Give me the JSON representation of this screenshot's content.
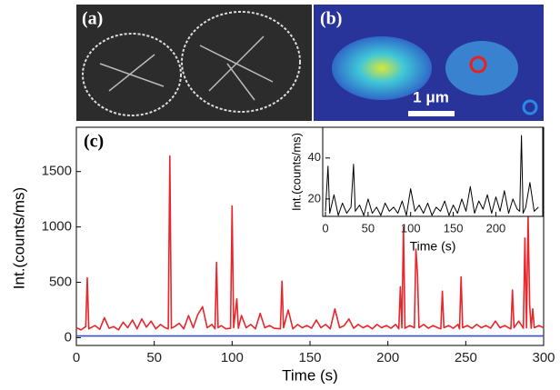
{
  "panels": {
    "a": "(a)",
    "b": "(b)",
    "scale_bar": "1 μm"
  },
  "chart_data": {
    "type": "line",
    "panel_label": "(c)",
    "xlabel": "Time (s)",
    "ylabel": "Int.(counts/ms)",
    "xlim": [
      0,
      300
    ],
    "xticks": [
      0,
      50,
      100,
      150,
      200,
      250,
      300
    ],
    "ylim": [
      -70,
      1900
    ],
    "yticks": [
      0,
      500,
      1000,
      1500
    ],
    "series": [
      {
        "color": "#e8262b",
        "x": [
          0,
          3,
          6,
          7,
          8,
          12,
          15,
          18,
          21,
          24,
          27,
          30,
          33,
          36,
          39,
          42,
          45,
          48,
          51,
          54,
          57,
          59,
          60,
          61,
          63,
          66,
          69,
          72,
          75,
          78,
          81,
          84,
          87,
          89,
          90,
          91,
          93,
          96,
          99,
          100,
          101,
          103,
          104,
          106,
          109,
          112,
          115,
          118,
          121,
          124,
          127,
          131,
          132,
          133,
          136,
          139,
          142,
          145,
          148,
          151,
          154,
          157,
          160,
          163,
          166,
          169,
          172,
          175,
          178,
          181,
          184,
          187,
          190,
          193,
          196,
          199,
          202,
          205,
          207,
          208,
          209,
          210,
          211,
          214,
          217,
          218,
          219,
          220,
          223,
          226,
          229,
          232,
          234,
          235,
          236,
          239,
          242,
          245,
          246,
          247,
          248,
          251,
          254,
          257,
          260,
          263,
          266,
          269,
          272,
          275,
          278,
          279,
          280,
          281,
          284,
          287,
          288,
          289,
          290,
          291,
          292,
          293,
          294,
          297,
          300
        ],
        "values": [
          90,
          70,
          100,
          540,
          80,
          110,
          75,
          180,
          85,
          100,
          70,
          140,
          90,
          160,
          80,
          170,
          95,
          150,
          80,
          120,
          90,
          80,
          1640,
          85,
          100,
          130,
          80,
          200,
          90,
          210,
          280,
          90,
          120,
          80,
          680,
          90,
          110,
          80,
          85,
          1190,
          90,
          350,
          85,
          200,
          90,
          120,
          80,
          220,
          90,
          110,
          85,
          80,
          510,
          90,
          250,
          80,
          120,
          90,
          110,
          85,
          160,
          90,
          120,
          80,
          260,
          90,
          110,
          170,
          85,
          120,
          90,
          110,
          80,
          120,
          90,
          110,
          85,
          120,
          80,
          460,
          90,
          1000,
          85,
          110,
          90,
          800,
          580,
          90,
          120,
          85,
          110,
          90,
          80,
          420,
          90,
          110,
          85,
          120,
          80,
          550,
          90,
          110,
          85,
          120,
          90,
          110,
          85,
          150,
          90,
          110,
          85,
          80,
          430,
          90,
          150,
          85,
          900,
          90,
          1100,
          300,
          85,
          260,
          90,
          110,
          90
        ]
      },
      {
        "color": "#3b4fc4",
        "x": [
          0,
          300
        ],
        "values": [
          15,
          15
        ]
      }
    ],
    "inset": {
      "type": "line",
      "xlabel": "Time (s)",
      "ylabel": "Int.(counts/ms)",
      "xlim": [
        0,
        255
      ],
      "xticks": [
        0,
        50,
        100,
        150,
        200
      ],
      "ylim": [
        11.5,
        55
      ],
      "yticks": [
        20,
        40
      ],
      "series": [
        {
          "color": "#000000",
          "x": [
            0,
            3,
            5,
            10,
            15,
            20,
            25,
            30,
            33,
            35,
            40,
            45,
            50,
            55,
            60,
            65,
            70,
            75,
            80,
            85,
            90,
            95,
            100,
            105,
            110,
            115,
            120,
            125,
            130,
            135,
            140,
            145,
            150,
            155,
            160,
            165,
            170,
            175,
            180,
            185,
            190,
            195,
            200,
            205,
            210,
            215,
            220,
            225,
            228,
            230,
            232,
            235,
            240,
            245,
            250
          ],
          "values": [
            14,
            36,
            13,
            22,
            12,
            18,
            13,
            16,
            37,
            14,
            17,
            12,
            20,
            13,
            16,
            12,
            18,
            14,
            16,
            13,
            19,
            12,
            25,
            14,
            17,
            13,
            18,
            12,
            16,
            14,
            19,
            12,
            17,
            13,
            20,
            14,
            26,
            13,
            19,
            15,
            22,
            13,
            21,
            14,
            24,
            13,
            20,
            15,
            14,
            51,
            13,
            16,
            28,
            14,
            16
          ]
        }
      ]
    }
  }
}
